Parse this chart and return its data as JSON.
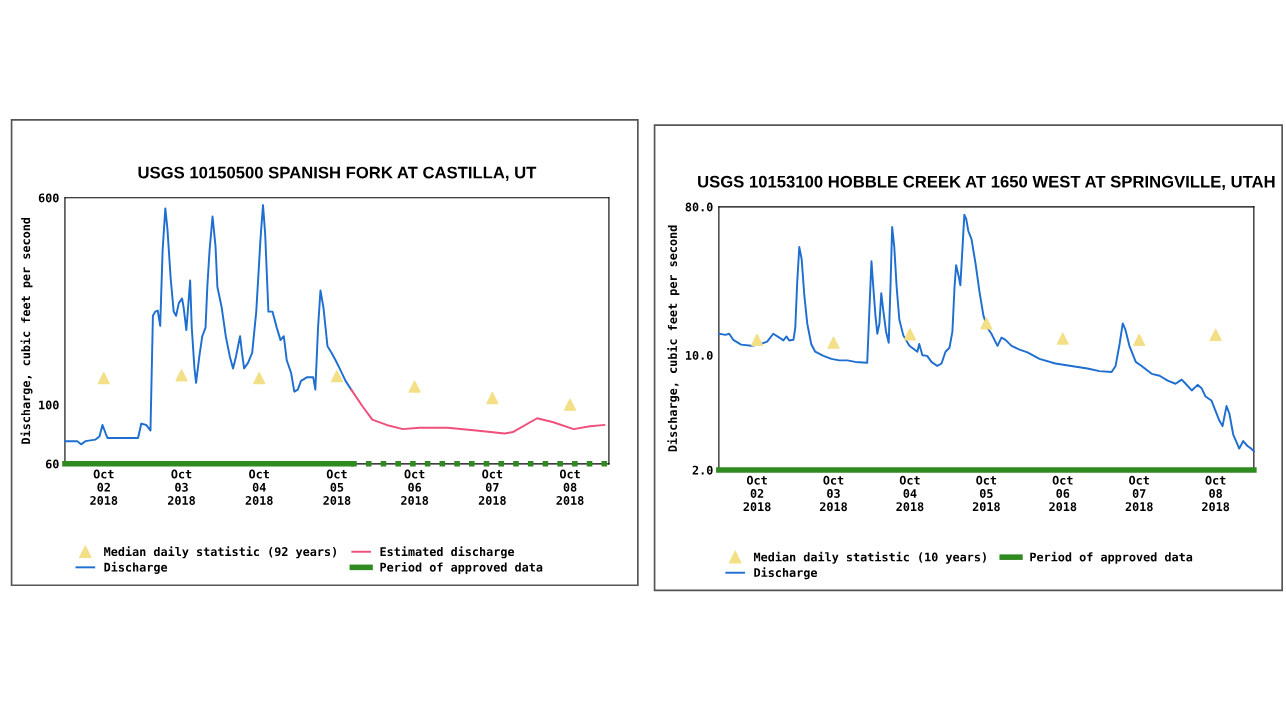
{
  "chart_data": [
    {
      "type": "line",
      "title": "USGS 10150500 SPANISH FORK AT CASTILLA, UT",
      "ylabel": "Discharge, cubic feet per second",
      "log": "y",
      "grid": false,
      "legend": "bottom",
      "xlim": [
        "2018-10-02T00:00",
        "2018-10-09T00:00"
      ],
      "ylim": [
        60,
        600
      ],
      "yticks": [
        60,
        100,
        600
      ],
      "xticks": [
        {
          "value": "2018-10-02T12:00",
          "label": "Oct\n02\n2018"
        },
        {
          "value": "2018-10-03T12:00",
          "label": "Oct\n03\n2018"
        },
        {
          "value": "2018-10-04T12:00",
          "label": "Oct\n04\n2018"
        },
        {
          "value": "2018-10-05T12:00",
          "label": "Oct\n05\n2018"
        },
        {
          "value": "2018-10-06T12:00",
          "label": "Oct\n06\n2018"
        },
        {
          "value": "2018-10-07T12:00",
          "label": "Oct\n07\n2018"
        },
        {
          "value": "2018-10-08T12:00",
          "label": "Oct\n08\n2018"
        }
      ],
      "series": [
        {
          "name": "Median daily statistic (92 years)",
          "type": "scatter",
          "marker": "triangle",
          "color": "#f3df86",
          "x": [
            "2018-10-02T12:00",
            "2018-10-03T12:00",
            "2018-10-04T12:00",
            "2018-10-05T12:00",
            "2018-10-06T12:00",
            "2018-10-07T12:00",
            "2018-10-08T12:00"
          ],
          "values": [
            126,
            129,
            126,
            128,
            117,
            106,
            100
          ]
        },
        {
          "name": "Discharge",
          "color": "#1f6fd1",
          "x": [
            "2018-10-02T00:00",
            "2018-10-02T03:50",
            "2018-10-02T05:00",
            "2018-10-02T06:20",
            "2018-10-02T09:25",
            "2018-10-02T10:40",
            "2018-10-02T11:35",
            "2018-10-02T12:35",
            "2018-10-02T13:10",
            "2018-10-02T22:35",
            "2018-10-02T23:35",
            "2018-10-03T01:05",
            "2018-10-03T02:25",
            "2018-10-03T03:10",
            "2018-10-03T03:55",
            "2018-10-03T04:40",
            "2018-10-03T05:25",
            "2018-10-03T06:10",
            "2018-10-03T07:00",
            "2018-10-03T07:40",
            "2018-10-03T08:40",
            "2018-10-03T09:35",
            "2018-10-03T10:20",
            "2018-10-03T11:10",
            "2018-10-03T12:10",
            "2018-10-03T12:40",
            "2018-10-03T13:30",
            "2018-10-03T14:40",
            "2018-10-03T15:10",
            "2018-10-03T16:00",
            "2018-10-03T16:30",
            "2018-10-03T17:30",
            "2018-10-03T18:25",
            "2018-10-03T19:25",
            "2018-10-03T20:00",
            "2018-10-03T20:40",
            "2018-10-03T21:35",
            "2018-10-03T22:30",
            "2018-10-03T23:05",
            "2018-10-04T00:25",
            "2018-10-04T01:40",
            "2018-10-04T02:55",
            "2018-10-04T03:55",
            "2018-10-04T04:50",
            "2018-10-04T06:05",
            "2018-10-04T06:40",
            "2018-10-04T07:20",
            "2018-10-04T08:35",
            "2018-10-04T09:50",
            "2018-10-04T11:05",
            "2018-10-04T12:25",
            "2018-10-04T13:10",
            "2018-10-04T13:50",
            "2018-10-04T14:50",
            "2018-10-04T16:05",
            "2018-10-04T17:25",
            "2018-10-04T18:35",
            "2018-10-04T19:35",
            "2018-10-04T20:30",
            "2018-10-04T21:50",
            "2018-10-04T22:50",
            "2018-10-04T23:55",
            "2018-10-05T00:55",
            "2018-10-05T02:50",
            "2018-10-05T04:40",
            "2018-10-05T05:20",
            "2018-10-05T06:10",
            "2018-10-05T06:55",
            "2018-10-05T07:50",
            "2018-10-05T09:05",
            "2018-10-05T10:20",
            "2018-10-05T11:35",
            "2018-10-05T12:50",
            "2018-10-05T14:40",
            "2018-10-05T16:25"
          ],
          "values": [
            73,
            73,
            71,
            73,
            74,
            76,
            84,
            78,
            75,
            75,
            85,
            84,
            80,
            216,
            224,
            226,
            198,
            381,
            547,
            455,
            297,
            224,
            216,
            241,
            251,
            232,
            191,
            293,
            195,
            137,
            121,
            152,
            181,
            195,
            282,
            381,
            510,
            395,
            277,
            232,
            181,
            152,
            137,
            152,
            181,
            157,
            137,
            144,
            157,
            224,
            424,
            563,
            440,
            224,
            224,
            195,
            175,
            181,
            147,
            132,
            112,
            114,
            123,
            127,
            127,
            114,
            195,
            269,
            232,
            166,
            157,
            147,
            137,
            123,
            114
          ]
        },
        {
          "name": "Estimated discharge",
          "color": "#ef4f7a",
          "x": [
            "2018-10-05T16:25",
            "2018-10-05T19:50",
            "2018-10-05T22:55",
            "2018-10-06T03:20",
            "2018-10-06T08:20",
            "2018-10-06T13:25",
            "2018-10-06T22:10",
            "2018-10-07T07:00",
            "2018-10-07T15:50",
            "2018-10-07T18:20",
            "2018-10-08T01:50",
            "2018-10-08T06:50",
            "2018-10-08T13:05",
            "2018-10-08T18:10",
            "2018-10-08T22:35"
          ],
          "values": [
            114,
            99,
            88,
            84,
            81,
            82,
            82,
            80,
            78,
            79,
            89,
            86,
            81,
            83,
            84
          ]
        },
        {
          "name": "Period of approved data",
          "type": "step",
          "color": "#2f8a1f",
          "x": [
            "2018-10-02T00:00",
            "2018-10-05T16:25"
          ],
          "values": [
            60,
            60
          ]
        },
        {
          "type": "step",
          "line_style": "dotted",
          "color": "#2f8a1f",
          "x": [
            "2018-10-05T16:25",
            "2018-10-09T00:00"
          ],
          "values": [
            60,
            60
          ]
        }
      ]
    },
    {
      "type": "line",
      "title": "USGS 10153100 HOBBLE CREEK AT 1650 WEST AT SPRINGVILLE, UTAH",
      "ylabel": "Discharge, cubic feet per second",
      "log": "y",
      "grid": false,
      "legend": "bottom",
      "xlim": [
        "2018-10-02T00:00",
        "2018-10-09T00:00"
      ],
      "ylim": [
        2,
        80
      ],
      "yticks": [
        {
          "value": 2,
          "label": "2.0"
        },
        {
          "value": 10,
          "label": "10.0"
        },
        {
          "value": 80,
          "label": "80.0"
        }
      ],
      "xticks": [
        {
          "value": "2018-10-02T12:00",
          "label": "Oct\n02\n2018"
        },
        {
          "value": "2018-10-03T12:00",
          "label": "Oct\n03\n2018"
        },
        {
          "value": "2018-10-04T12:00",
          "label": "Oct\n04\n2018"
        },
        {
          "value": "2018-10-05T12:00",
          "label": "Oct\n05\n2018"
        },
        {
          "value": "2018-10-06T12:00",
          "label": "Oct\n06\n2018"
        },
        {
          "value": "2018-10-07T12:00",
          "label": "Oct\n07\n2018"
        },
        {
          "value": "2018-10-08T12:00",
          "label": "Oct\n08\n2018"
        }
      ],
      "series": [
        {
          "name": "Median daily statistic (10 years)",
          "type": "scatter",
          "marker": "triangle",
          "color": "#f3df86",
          "x": [
            "2018-10-02T12:00",
            "2018-10-03T12:00",
            "2018-10-04T12:00",
            "2018-10-05T12:00",
            "2018-10-06T12:00",
            "2018-10-07T12:00",
            "2018-10-08T12:00"
          ],
          "values": [
            12.4,
            11.9,
            13.4,
            15.6,
            12.6,
            12.4,
            13.3
          ]
        },
        {
          "name": "Discharge",
          "color": "#1f6fd1",
          "x": [
            "2018-10-02T00:00",
            "2018-10-02T02:00",
            "2018-10-02T03:15",
            "2018-10-02T04:30",
            "2018-10-02T07:00",
            "2018-10-02T10:10",
            "2018-10-02T12:40",
            "2018-10-02T15:10",
            "2018-10-02T17:05",
            "2018-10-02T19:00",
            "2018-10-02T20:15",
            "2018-10-02T21:15",
            "2018-10-02T22:05",
            "2018-10-02T23:25",
            "2018-10-03T00:00",
            "2018-10-03T00:35",
            "2018-10-03T01:15",
            "2018-10-03T02:00",
            "2018-10-03T02:50",
            "2018-10-03T03:45",
            "2018-10-03T05:00",
            "2018-10-03T06:15",
            "2018-10-03T08:50",
            "2018-10-03T11:20",
            "2018-10-03T13:50",
            "2018-10-03T16:20",
            "2018-10-03T18:50",
            "2018-10-03T22:35",
            "2018-10-03T23:15",
            "2018-10-03T23:55",
            "2018-10-04T00:30",
            "2018-10-04T01:10",
            "2018-10-04T01:45",
            "2018-10-04T02:25",
            "2018-10-04T03:00",
            "2018-10-04T03:40",
            "2018-10-04T04:30",
            "2018-10-04T05:20",
            "2018-10-04T05:55",
            "2018-10-04T06:25",
            "2018-10-04T07:05",
            "2018-10-04T07:50",
            "2018-10-04T08:40",
            "2018-10-04T09:55",
            "2018-10-04T11:50",
            "2018-10-04T14:20",
            "2018-10-04T14:55",
            "2018-10-04T15:55",
            "2018-10-04T17:25",
            "2018-10-04T18:45",
            "2018-10-04T20:35",
            "2018-10-04T21:55",
            "2018-10-04T23:10",
            "2018-10-05T00:25",
            "2018-10-05T01:20",
            "2018-10-05T02:00",
            "2018-10-05T02:30",
            "2018-10-05T03:15",
            "2018-10-05T03:50",
            "2018-10-05T04:35",
            "2018-10-05T05:05",
            "2018-10-05T05:40",
            "2018-10-05T06:20",
            "2018-10-05T07:20",
            "2018-10-05T08:35",
            "2018-10-05T09:50",
            "2018-10-05T11:05",
            "2018-10-05T12:20",
            "2018-10-05T13:35",
            "2018-10-05T15:30",
            "2018-10-05T16:45",
            "2018-10-05T18:00",
            "2018-10-05T19:55",
            "2018-10-05T22:25",
            "2018-10-06T00:55",
            "2018-10-06T04:40",
            "2018-10-06T09:40",
            "2018-10-06T14:40",
            "2018-10-06T19:45",
            "2018-10-06T23:30",
            "2018-10-07T03:20",
            "2018-10-07T04:35",
            "2018-10-07T05:50",
            "2018-10-07T06:50",
            "2018-10-07T07:40",
            "2018-10-07T08:55",
            "2018-10-07T10:55",
            "2018-10-07T12:45",
            "2018-10-07T15:55",
            "2018-10-07T18:25",
            "2018-10-07T20:55",
            "2018-10-07T23:25",
            "2018-10-08T01:20",
            "2018-10-08T02:35",
            "2018-10-08T04:30",
            "2018-10-08T06:20",
            "2018-10-08T07:35",
            "2018-10-08T08:50",
            "2018-10-08T10:40",
            "2018-10-08T13:10",
            "2018-10-08T14:10",
            "2018-10-08T15:25",
            "2018-10-08T16:20",
            "2018-10-08T17:30",
            "2018-10-08T19:25",
            "2018-10-08T20:40",
            "2018-10-08T22:00",
            "2018-10-08T23:10",
            "2018-10-09T00:00"
          ],
          "values": [
            13.5,
            13.3,
            13.5,
            12.4,
            11.6,
            11.4,
            11.6,
            12.1,
            13.5,
            12.8,
            12.3,
            13.0,
            12.3,
            12.4,
            14.7,
            27.4,
            45.5,
            38.4,
            23.1,
            15.6,
            11.7,
            10.5,
            9.9,
            9.5,
            9.3,
            9.3,
            9.1,
            9.0,
            18.5,
            37.3,
            25.9,
            17.4,
            13.5,
            15.6,
            23.8,
            18.5,
            13.9,
            11.9,
            27.4,
            60.3,
            45.5,
            25.9,
            16.5,
            13.2,
            11.4,
            10.5,
            11.7,
            10.0,
            9.9,
            9.1,
            8.6,
            8.9,
            10.5,
            11.1,
            13.9,
            25.9,
            35.3,
            30.6,
            26.6,
            48.1,
            71.5,
            67.5,
            57.0,
            50.9,
            36.3,
            24.4,
            17.4,
            14.7,
            13.5,
            11.4,
            12.8,
            12.4,
            11.4,
            10.8,
            10.4,
            9.5,
            8.9,
            8.6,
            8.3,
            8.0,
            7.9,
            8.6,
            11.7,
            15.6,
            14.3,
            11.4,
            9.1,
            8.6,
            7.7,
            7.5,
            7.0,
            6.7,
            7.1,
            6.7,
            6.1,
            6.6,
            6.3,
            5.6,
            5.3,
            4.0,
            3.7,
            4.9,
            4.4,
            3.3,
            2.7,
            3.0,
            2.8,
            2.7,
            2.6
          ]
        },
        {
          "name": "Period of approved data",
          "type": "step",
          "color": "#2f8a1f",
          "x": [
            "2018-10-02T00:00",
            "2018-10-09T00:00"
          ],
          "values": [
            2,
            2
          ]
        }
      ]
    }
  ]
}
